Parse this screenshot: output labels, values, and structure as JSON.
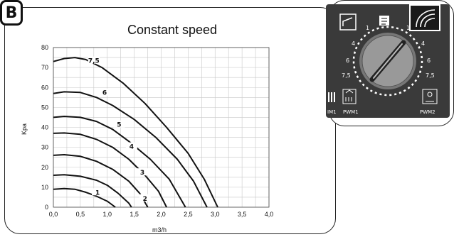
{
  "panel": {
    "badge": "B"
  },
  "chart_data": {
    "type": "line",
    "title": "Constant speed",
    "xlabel": "m3/h",
    "ylabel": "Kpa",
    "xlim": [
      0,
      4.0
    ],
    "ylim": [
      0,
      80
    ],
    "xticks": [
      "0,0",
      "0,5",
      "1,0",
      "1,5",
      "2,0",
      "2,5",
      "3,0",
      "3,5",
      "4,0"
    ],
    "yticks": [
      "0",
      "10",
      "20",
      "30",
      "40",
      "50",
      "60",
      "70",
      "80"
    ],
    "grid": true,
    "series": [
      {
        "name": "7,5",
        "points": [
          [
            0,
            73
          ],
          [
            0.2,
            74.5
          ],
          [
            0.4,
            75
          ],
          [
            0.6,
            74
          ],
          [
            0.9,
            70
          ],
          [
            1.3,
            62
          ],
          [
            1.7,
            52
          ],
          [
            2.1,
            40
          ],
          [
            2.5,
            27
          ],
          [
            2.8,
            14
          ],
          [
            3.05,
            0
          ]
        ]
      },
      {
        "name": "6",
        "points": [
          [
            0,
            57
          ],
          [
            0.2,
            57.8
          ],
          [
            0.5,
            57.5
          ],
          [
            0.8,
            55
          ],
          [
            1.1,
            51
          ],
          [
            1.5,
            44
          ],
          [
            1.9,
            35
          ],
          [
            2.3,
            24
          ],
          [
            2.6,
            13
          ],
          [
            2.85,
            0
          ]
        ]
      },
      {
        "name": "5",
        "points": [
          [
            0,
            45
          ],
          [
            0.2,
            45.5
          ],
          [
            0.5,
            45
          ],
          [
            0.8,
            43
          ],
          [
            1.1,
            39
          ],
          [
            1.4,
            33
          ],
          [
            1.8,
            24
          ],
          [
            2.15,
            14
          ],
          [
            2.45,
            0
          ]
        ]
      },
      {
        "name": "4",
        "points": [
          [
            0,
            37
          ],
          [
            0.2,
            37.2
          ],
          [
            0.5,
            36.5
          ],
          [
            0.8,
            34
          ],
          [
            1.1,
            30
          ],
          [
            1.4,
            24
          ],
          [
            1.7,
            16
          ],
          [
            1.95,
            8
          ],
          [
            2.1,
            0
          ]
        ]
      },
      {
        "name": "3",
        "points": [
          [
            0,
            26
          ],
          [
            0.2,
            26.3
          ],
          [
            0.5,
            25.5
          ],
          [
            0.8,
            23
          ],
          [
            1.1,
            19
          ],
          [
            1.4,
            13
          ],
          [
            1.6,
            7
          ],
          [
            1.75,
            0
          ]
        ]
      },
      {
        "name": "2",
        "points": [
          [
            0,
            16
          ],
          [
            0.2,
            16.3
          ],
          [
            0.5,
            15.5
          ],
          [
            0.8,
            13.5
          ],
          [
            1.0,
            11
          ],
          [
            1.2,
            7
          ],
          [
            1.4,
            2
          ],
          [
            1.45,
            0
          ]
        ]
      },
      {
        "name": "1",
        "points": [
          [
            0,
            9
          ],
          [
            0.2,
            9.3
          ],
          [
            0.4,
            9
          ],
          [
            0.6,
            7.5
          ],
          [
            0.8,
            5.5
          ],
          [
            1.0,
            3
          ],
          [
            1.15,
            0
          ]
        ]
      }
    ],
    "labels": [
      {
        "text": "7,5",
        "x": 0.75,
        "y": 73
      },
      {
        "text": "6",
        "x": 0.95,
        "y": 57
      },
      {
        "text": "5",
        "x": 1.22,
        "y": 41
      },
      {
        "text": "4",
        "x": 1.45,
        "y": 30
      },
      {
        "text": "3",
        "x": 1.65,
        "y": 17
      },
      {
        "text": "2",
        "x": 1.7,
        "y": 4
      },
      {
        "text": "1",
        "x": 0.82,
        "y": 7
      }
    ]
  },
  "controller": {
    "dial_left": [
      "1",
      "4",
      "6",
      "7,5"
    ],
    "dial_right": [
      "1",
      "4",
      "6",
      "7,5"
    ],
    "labels": {
      "pwm1": "PWM1",
      "pwm2": "PWM2",
      "im1": "IM1"
    },
    "icons": [
      "constant-pressure-icon",
      "auto-mode-icon",
      "constant-speed-icon",
      "pwm1-heating-icon",
      "pwm2-solar-icon"
    ]
  }
}
